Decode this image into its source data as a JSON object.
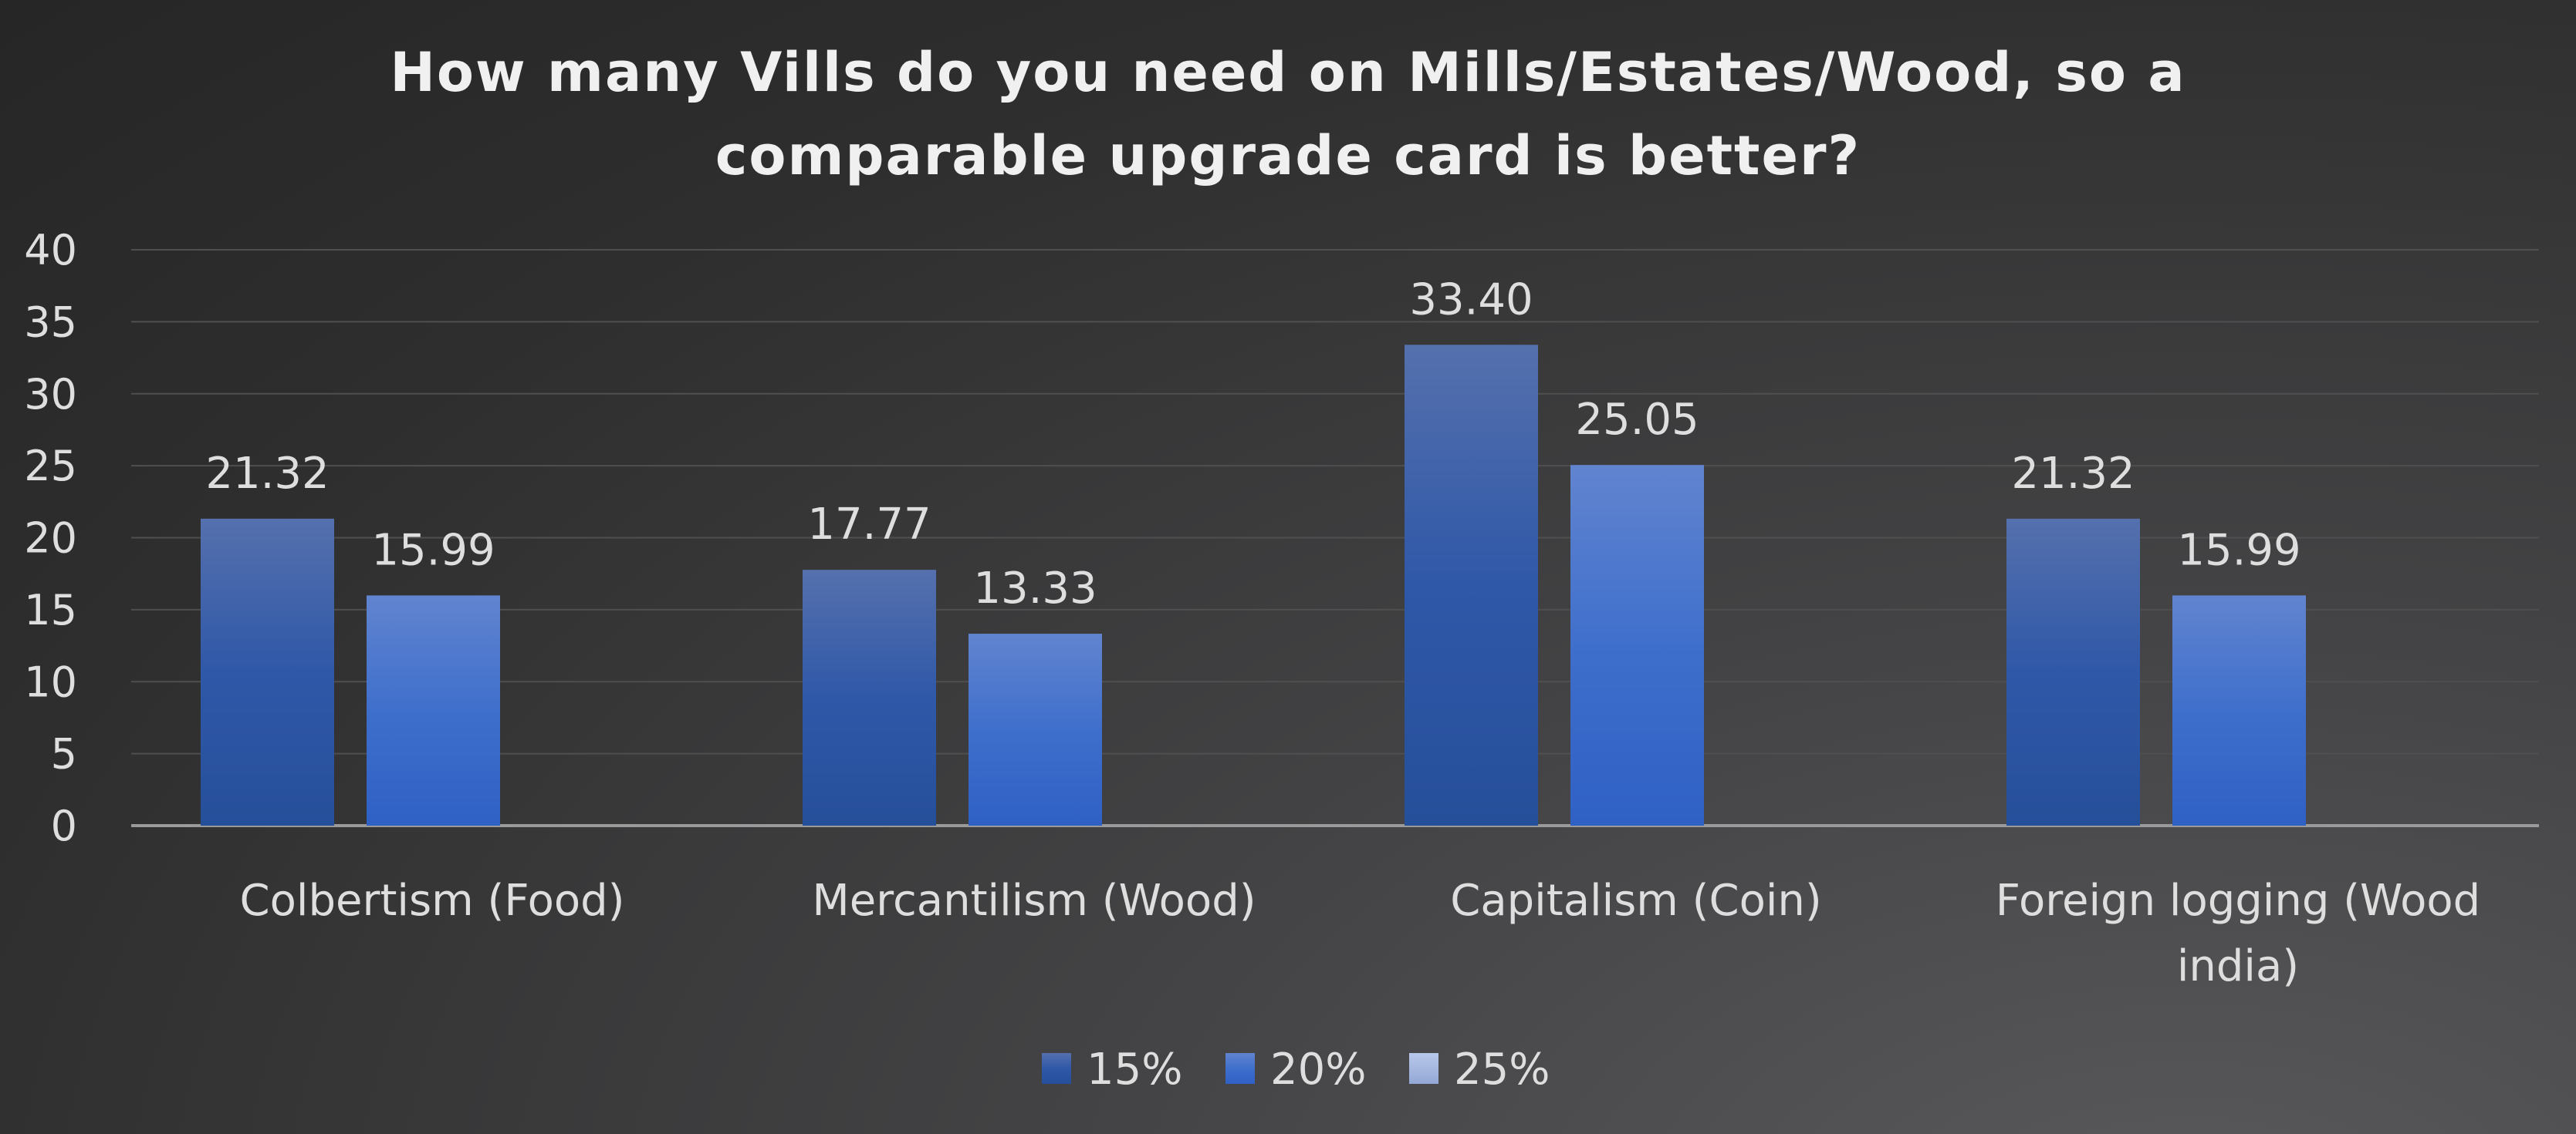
{
  "chart_data": {
    "type": "bar",
    "title": "How many Vills do you need on Mills/Estates/Wood, so a comparable upgrade card is better?",
    "title_lines": [
      "How many Vills do you need on Mills/Estates/Wood, so a",
      "comparable upgrade card is better?"
    ],
    "categories": [
      "Colbertism (Food)",
      "Mercantilism (Wood)",
      "Capitalism (Coin)",
      "Foreign logging (Wood india)"
    ],
    "category_lines": [
      [
        "Colbertism (Food)"
      ],
      [
        "Mercantilism (Wood)"
      ],
      [
        "Capitalism (Coin)"
      ],
      [
        "Foreign logging (Wood",
        "india)"
      ]
    ],
    "series": [
      {
        "name": "15%",
        "values": [
          21.32,
          17.77,
          33.4,
          21.32
        ],
        "labels": [
          "21.32",
          "17.77",
          "33.40",
          "21.32"
        ],
        "color": "#2f55a4"
      },
      {
        "name": "20%",
        "values": [
          15.99,
          13.33,
          25.05,
          15.99
        ],
        "labels": [
          "15.99",
          "13.33",
          "25.05",
          "15.99"
        ],
        "color": "#3b6fd0"
      },
      {
        "name": "25%",
        "values": [
          null,
          null,
          null,
          null
        ],
        "labels": [],
        "color": "#aebde3"
      }
    ],
    "ylim": [
      0,
      40
    ],
    "yticks": [
      "0",
      "5",
      "10",
      "15",
      "20",
      "25",
      "30",
      "35",
      "40"
    ],
    "xlabel": "",
    "ylabel": "",
    "grid": true,
    "legend": "bottom"
  }
}
